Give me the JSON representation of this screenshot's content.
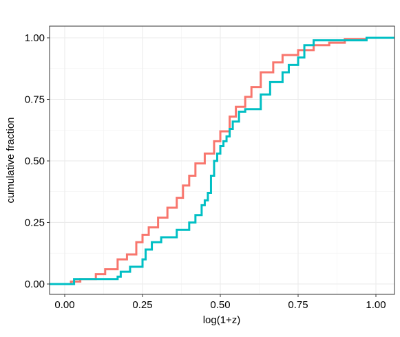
{
  "chart_data": {
    "type": "step",
    "x_label": "log(1+z)",
    "y_label": "cumulative fraction",
    "xlim": [
      -0.0487,
      1.0597
    ],
    "ylim": [
      -0.042,
      1.0475
    ],
    "xticks": [
      {
        "value": 0,
        "label": "0.00"
      },
      {
        "value": 0.25,
        "label": "0.25"
      },
      {
        "value": 0.5,
        "label": "0.50"
      },
      {
        "value": 0.75,
        "label": "0.75"
      },
      {
        "value": 1,
        "label": "1.00"
      }
    ],
    "yticks": [
      {
        "value": 0,
        "label": "0.00"
      },
      {
        "value": 0.25,
        "label": "0.25"
      },
      {
        "value": 0.5,
        "label": "0.50"
      },
      {
        "value": 0.75,
        "label": "0.75"
      },
      {
        "value": 1,
        "label": "1.00"
      }
    ],
    "x_minor_ticks": [
      0.125,
      0.375,
      0.625,
      0.875
    ],
    "y_minor_ticks": [
      0.125,
      0.375,
      0.625,
      0.875
    ],
    "grid": true,
    "series": [
      {
        "color": "#F8766D",
        "x": [
          0,
          0.02,
          0.05,
          0.1,
          0.13,
          0.17,
          0.2,
          0.23,
          0.25,
          0.27,
          0.3,
          0.33,
          0.36,
          0.38,
          0.4,
          0.42,
          0.45,
          0.48,
          0.5,
          0.53,
          0.55,
          0.58,
          0.6,
          0.63,
          0.67,
          0.7,
          0.75,
          0.8,
          0.85,
          0.9,
          0.97,
          1.06
        ],
        "values": [
          0,
          0.01,
          0.02,
          0.04,
          0.06,
          0.1,
          0.12,
          0.17,
          0.2,
          0.23,
          0.27,
          0.31,
          0.35,
          0.4,
          0.44,
          0.49,
          0.53,
          0.58,
          0.62,
          0.68,
          0.72,
          0.76,
          0.8,
          0.86,
          0.9,
          0.93,
          0.95,
          0.97,
          0.98,
          0.995,
          1,
          1
        ]
      },
      {
        "color": "#00BFC4",
        "x": [
          -0.05,
          0.03,
          0.17,
          0.18,
          0.21,
          0.25,
          0.26,
          0.28,
          0.31,
          0.36,
          0.4,
          0.42,
          0.44,
          0.45,
          0.46,
          0.47,
          0.48,
          0.49,
          0.5,
          0.51,
          0.52,
          0.53,
          0.54,
          0.56,
          0.58,
          0.63,
          0.66,
          0.7,
          0.72,
          0.75,
          0.77,
          0.8,
          0.97,
          1.06
        ],
        "values": [
          0,
          0.02,
          0.03,
          0.05,
          0.07,
          0.1,
          0.14,
          0.17,
          0.19,
          0.22,
          0.25,
          0.28,
          0.32,
          0.34,
          0.37,
          0.44,
          0.5,
          0.53,
          0.56,
          0.58,
          0.6,
          0.63,
          0.66,
          0.7,
          0.71,
          0.77,
          0.82,
          0.86,
          0.89,
          0.92,
          0.97,
          0.99,
          1,
          1
        ]
      }
    ]
  }
}
